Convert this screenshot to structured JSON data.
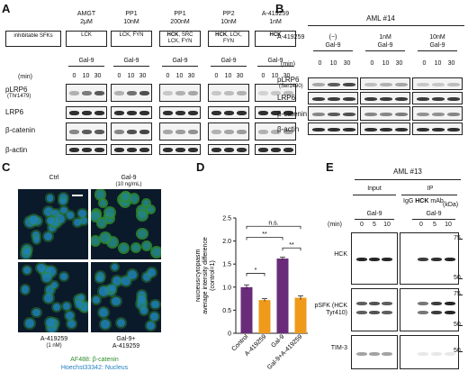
{
  "panel_letters": [
    "A",
    "B",
    "C",
    "D",
    "E"
  ],
  "panelA": {
    "row_label": "inhibitable SFKs",
    "groups": [
      {
        "title": "AMGT",
        "dose": "2μM",
        "sfk": "LCK",
        "bold": ""
      },
      {
        "title": "PP1",
        "dose": "10nM",
        "sfk": "LCK, FYN",
        "bold": ""
      },
      {
        "title": "PP1",
        "dose": "200nM",
        "sfk": ", SRC LCK, FYN",
        "bold": "HCK"
      },
      {
        "title": "PP2",
        "dose": "10nM",
        "sfk": ", LCK, FYN",
        "bold": "HCK"
      },
      {
        "title": "A-419259",
        "dose": "1nM",
        "sfk": "",
        "bold": "HCK"
      }
    ],
    "treatment": "Gal-9",
    "min_label": "(min)",
    "times": [
      "0",
      "10",
      "30"
    ],
    "blots": [
      "pLRP6",
      "LRP6",
      "β-catenin",
      "β-actin"
    ],
    "blot_sub": "(Thr1479)"
  },
  "panelB": {
    "title": "AML #14",
    "drug": "A-419259",
    "conditions": [
      "(−)",
      "1nM",
      "10nM"
    ],
    "treatment": "Gal-9",
    "min_label": "(min)",
    "times": [
      "0",
      "10",
      "30"
    ],
    "blots": [
      "pLRP6",
      "LRP6",
      "β-catenin",
      "β-actin"
    ],
    "blot_sub": "(Ser1490)"
  },
  "panelC": {
    "labels": {
      "ctrl": "Ctrl",
      "gal9": "Gal-9",
      "gal9_dose": "(10 ng/mL)",
      "a419": "A-419259",
      "a419_dose": "(1 nM)",
      "combo1": "Gal-9+",
      "combo2": "A-419259"
    },
    "legend_green": "AF488: β-catenin",
    "legend_blue": "Hoechst33342: Nucleus",
    "colors": {
      "green": "#2e8b2e",
      "blue": "#1e7fc0"
    }
  },
  "panelD": {
    "chart_data": {
      "type": "bar",
      "categories": [
        "Control",
        "A-419259",
        "Gal-9",
        "Gal-9+A-419259"
      ],
      "values": [
        1.0,
        0.72,
        1.62,
        0.77
      ],
      "errors": [
        0.05,
        0.03,
        0.03,
        0.04
      ],
      "colors": [
        "#6a2c7a",
        "#ef9a1a",
        "#6a2c7a",
        "#ef9a1a"
      ],
      "ylabel": "Nucleus/cytoplasm average intensity difference (control=1)",
      "ylim": [
        0,
        2.5
      ],
      "yticks": [
        "0",
        "0.5",
        "1.0",
        "1.5",
        "2.0",
        "2.5"
      ],
      "significance": [
        {
          "pair": [
            0,
            1
          ],
          "label": "*"
        },
        {
          "pair": [
            2,
            3
          ],
          "label": "**"
        },
        {
          "pair": [
            0,
            2
          ],
          "label": "**"
        },
        {
          "pair": [
            0,
            3
          ],
          "label": "n.s."
        }
      ]
    }
  },
  "panelE": {
    "title": "AML #13",
    "input_label": "Input",
    "ip_label": "IP",
    "igg": "IgG",
    "hck": "HCK",
    "mab": "mAb",
    "treatment": "Gal-9",
    "min_label": "(min)",
    "times": [
      "0",
      "5",
      "10"
    ],
    "kda": "(kDa)",
    "blots": [
      {
        "name": "HCK",
        "markers": [
          "75",
          "50"
        ]
      },
      {
        "name": "pSFK (HCK Tyr410)",
        "markers": [
          "75",
          "50"
        ]
      },
      {
        "name": "TIM-3",
        "markers": [
          "50"
        ]
      }
    ]
  }
}
